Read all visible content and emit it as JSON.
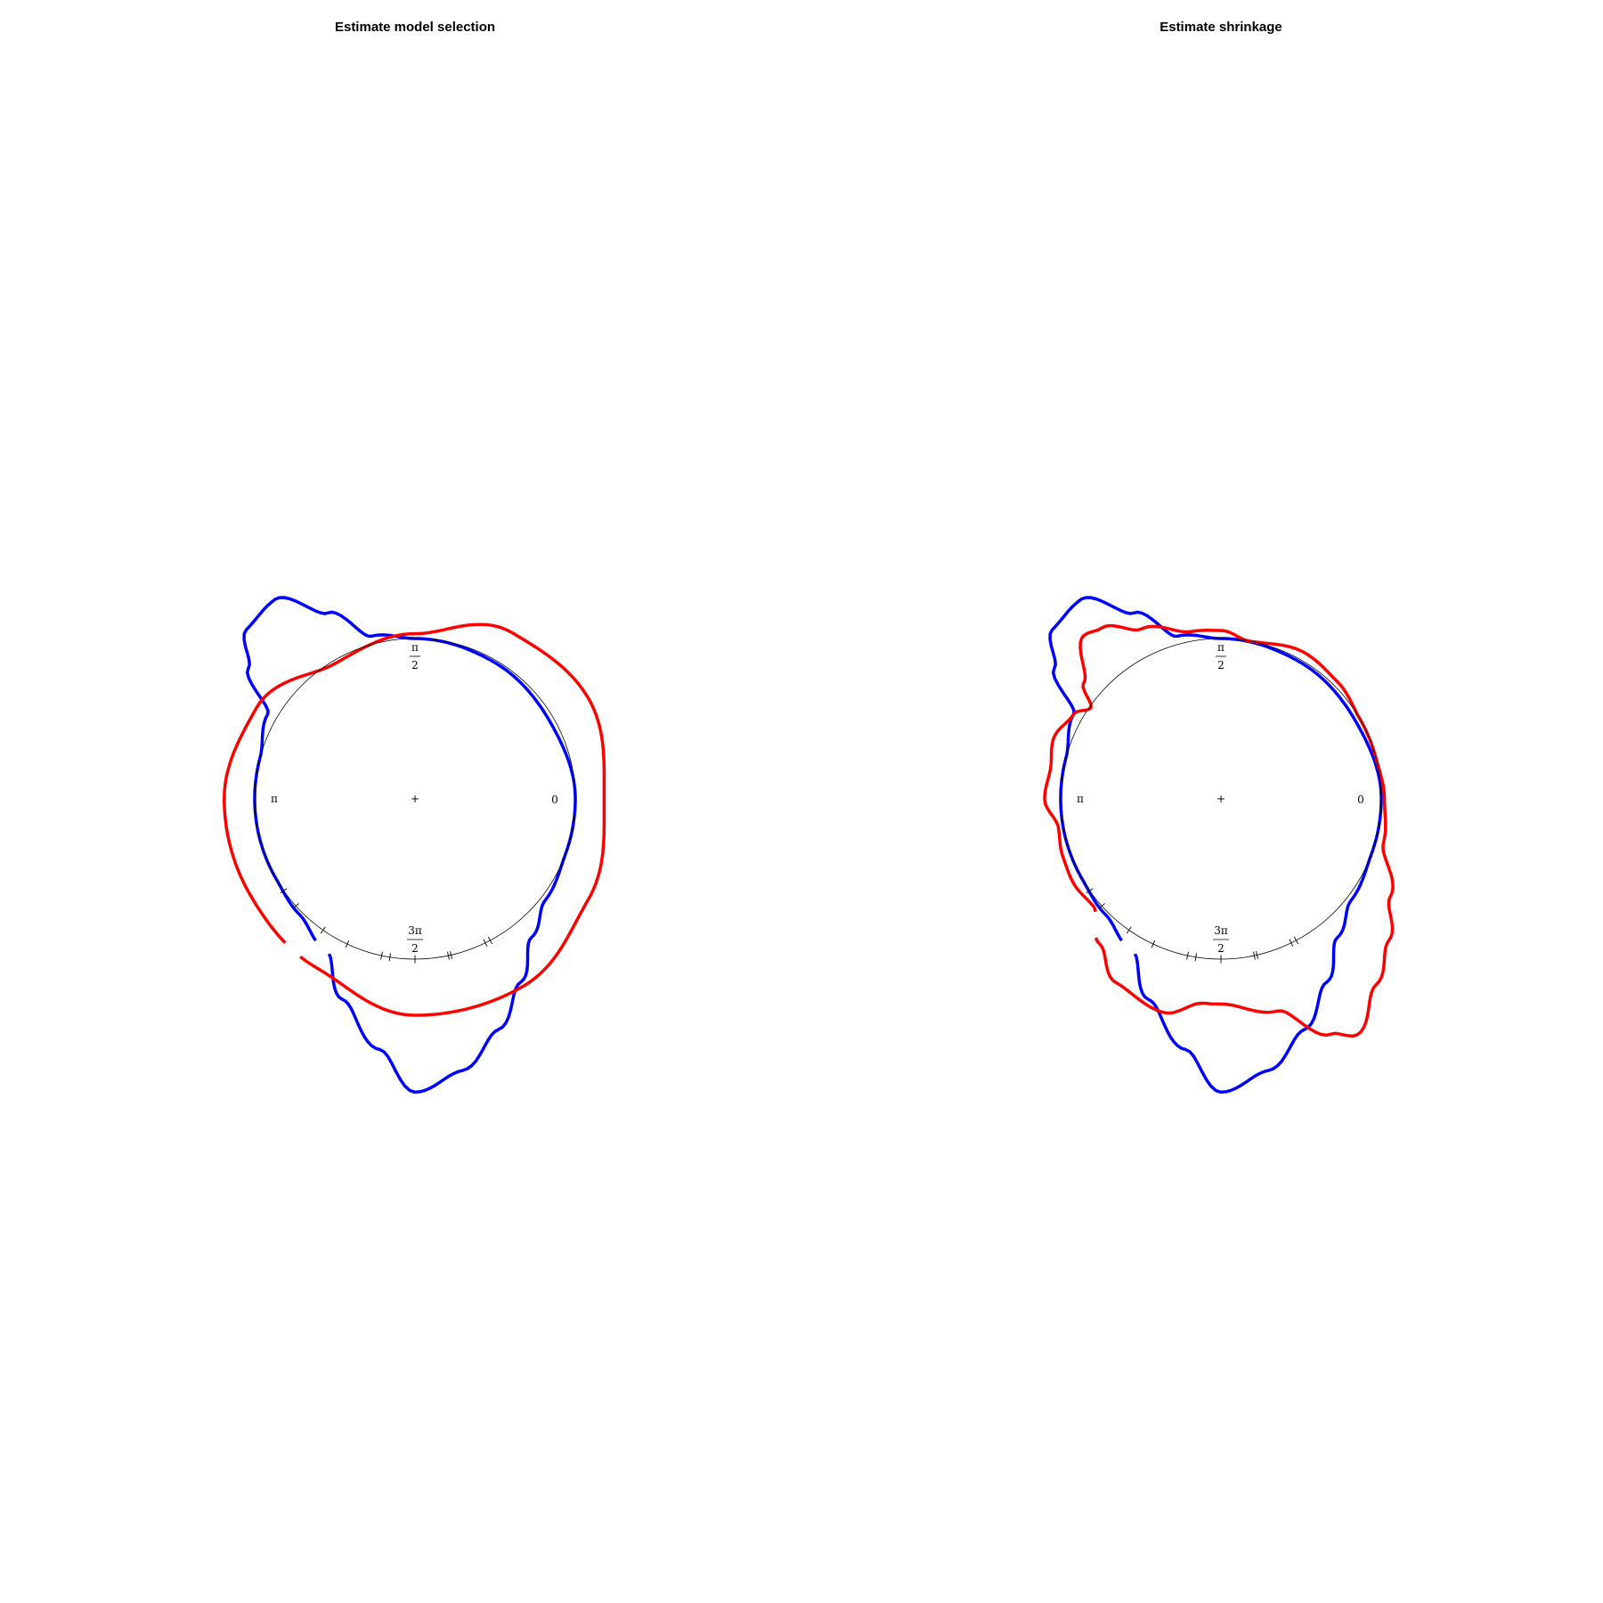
{
  "chart_data": [
    {
      "type": "line",
      "coord": "polar",
      "title": "Estimate model selection",
      "angle_labels": {
        "zero": "0",
        "half_pi_num": "π",
        "half_pi_den": "2",
        "pi": "π",
        "three_half_pi_num": "3π",
        "three_half_pi_den": "2",
        "center": "+"
      },
      "rug_deg": [
        215,
        222,
        235,
        245,
        258,
        261,
        270,
        282,
        283,
        296,
        298
      ],
      "series": [
        {
          "color": "#0000ff",
          "gap_deg": [
            235,
            241
          ],
          "points": [
            [
              0,
              1.0
            ],
            [
              30,
              0.97
            ],
            [
              60,
              0.985
            ],
            [
              90,
              1.0
            ],
            [
              105,
              1.05
            ],
            [
              115,
              1.28
            ],
            [
              125,
              1.52
            ],
            [
              135,
              1.49
            ],
            [
              142,
              1.32
            ],
            [
              150,
              1.06
            ],
            [
              165,
              1.0
            ],
            [
              180,
              1.0
            ],
            [
              195,
              1.0
            ],
            [
              210,
              1.0
            ],
            [
              225,
              1.02
            ],
            [
              240,
              1.1
            ],
            [
              250,
              1.33
            ],
            [
              262,
              1.58
            ],
            [
              270,
              1.83
            ],
            [
              280,
              1.72
            ],
            [
              290,
              1.53
            ],
            [
              300,
              1.32
            ],
            [
              310,
              1.13
            ],
            [
              322,
              1.03
            ],
            [
              340,
              1.0
            ],
            [
              360,
              1.0
            ]
          ]
        },
        {
          "color": "#ff0000",
          "gap_deg": [
            228,
            234
          ],
          "points": [
            [
              0,
              1.18
            ],
            [
              30,
              1.25
            ],
            [
              60,
              1.2
            ],
            [
              90,
              1.03
            ],
            [
              120,
              0.98
            ],
            [
              150,
              1.14
            ],
            [
              180,
              1.19
            ],
            [
              210,
              1.19
            ],
            [
              240,
              1.22
            ],
            [
              270,
              1.35
            ],
            [
              300,
              1.35
            ],
            [
              330,
              1.25
            ],
            [
              360,
              1.18
            ]
          ]
        }
      ]
    },
    {
      "type": "line",
      "coord": "polar",
      "title": "Estimate shrinkage",
      "angle_labels": {
        "zero": "0",
        "half_pi_num": "π",
        "half_pi_den": "2",
        "pi": "π",
        "three_half_pi_num": "3π",
        "three_half_pi_den": "2",
        "center": "+"
      },
      "rug_deg": [
        215,
        222,
        235,
        245,
        258,
        261,
        270,
        282,
        283,
        296,
        298
      ],
      "series": [
        {
          "color": "#0000ff",
          "gap_deg": [
            235,
            241
          ],
          "points": [
            [
              0,
              1.0
            ],
            [
              30,
              0.97
            ],
            [
              60,
              0.985
            ],
            [
              90,
              1.0
            ],
            [
              105,
              1.05
            ],
            [
              115,
              1.28
            ],
            [
              125,
              1.52
            ],
            [
              135,
              1.49
            ],
            [
              142,
              1.32
            ],
            [
              150,
              1.06
            ],
            [
              165,
              1.0
            ],
            [
              180,
              1.0
            ],
            [
              195,
              1.0
            ],
            [
              210,
              1.0
            ],
            [
              225,
              1.02
            ],
            [
              240,
              1.1
            ],
            [
              250,
              1.33
            ],
            [
              262,
              1.58
            ],
            [
              270,
              1.83
            ],
            [
              280,
              1.72
            ],
            [
              290,
              1.53
            ],
            [
              300,
              1.32
            ],
            [
              310,
              1.13
            ],
            [
              322,
              1.03
            ],
            [
              340,
              1.0
            ],
            [
              360,
              1.0
            ]
          ]
        },
        {
          "color": "#ff0000",
          "gap_deg": [
            222,
            228
          ],
          "points": [
            [
              0,
              1.02
            ],
            [
              15,
              1.0
            ],
            [
              30,
              1.0
            ],
            [
              45,
              1.03
            ],
            [
              60,
              1.05
            ],
            [
              80,
              1.0
            ],
            [
              90,
              1.05
            ],
            [
              100,
              1.06
            ],
            [
              115,
              1.17
            ],
            [
              125,
              1.3
            ],
            [
              130,
              1.33
            ],
            [
              140,
              1.12
            ],
            [
              145,
              0.99
            ],
            [
              150,
              1.06
            ],
            [
              160,
              1.11
            ],
            [
              170,
              1.08
            ],
            [
              180,
              1.1
            ],
            [
              190,
              1.03
            ],
            [
              200,
              1.05
            ],
            [
              210,
              1.06
            ],
            [
              220,
              1.04
            ],
            [
              230,
              1.18
            ],
            [
              240,
              1.32
            ],
            [
              255,
              1.38
            ],
            [
              265,
              1.28
            ],
            [
              270,
              1.28
            ],
            [
              285,
              1.37
            ],
            [
              295,
              1.62
            ],
            [
              300,
              1.7
            ],
            [
              310,
              1.51
            ],
            [
              320,
              1.37
            ],
            [
              330,
              1.22
            ],
            [
              345,
              1.05
            ],
            [
              360,
              1.02
            ]
          ]
        }
      ]
    }
  ]
}
